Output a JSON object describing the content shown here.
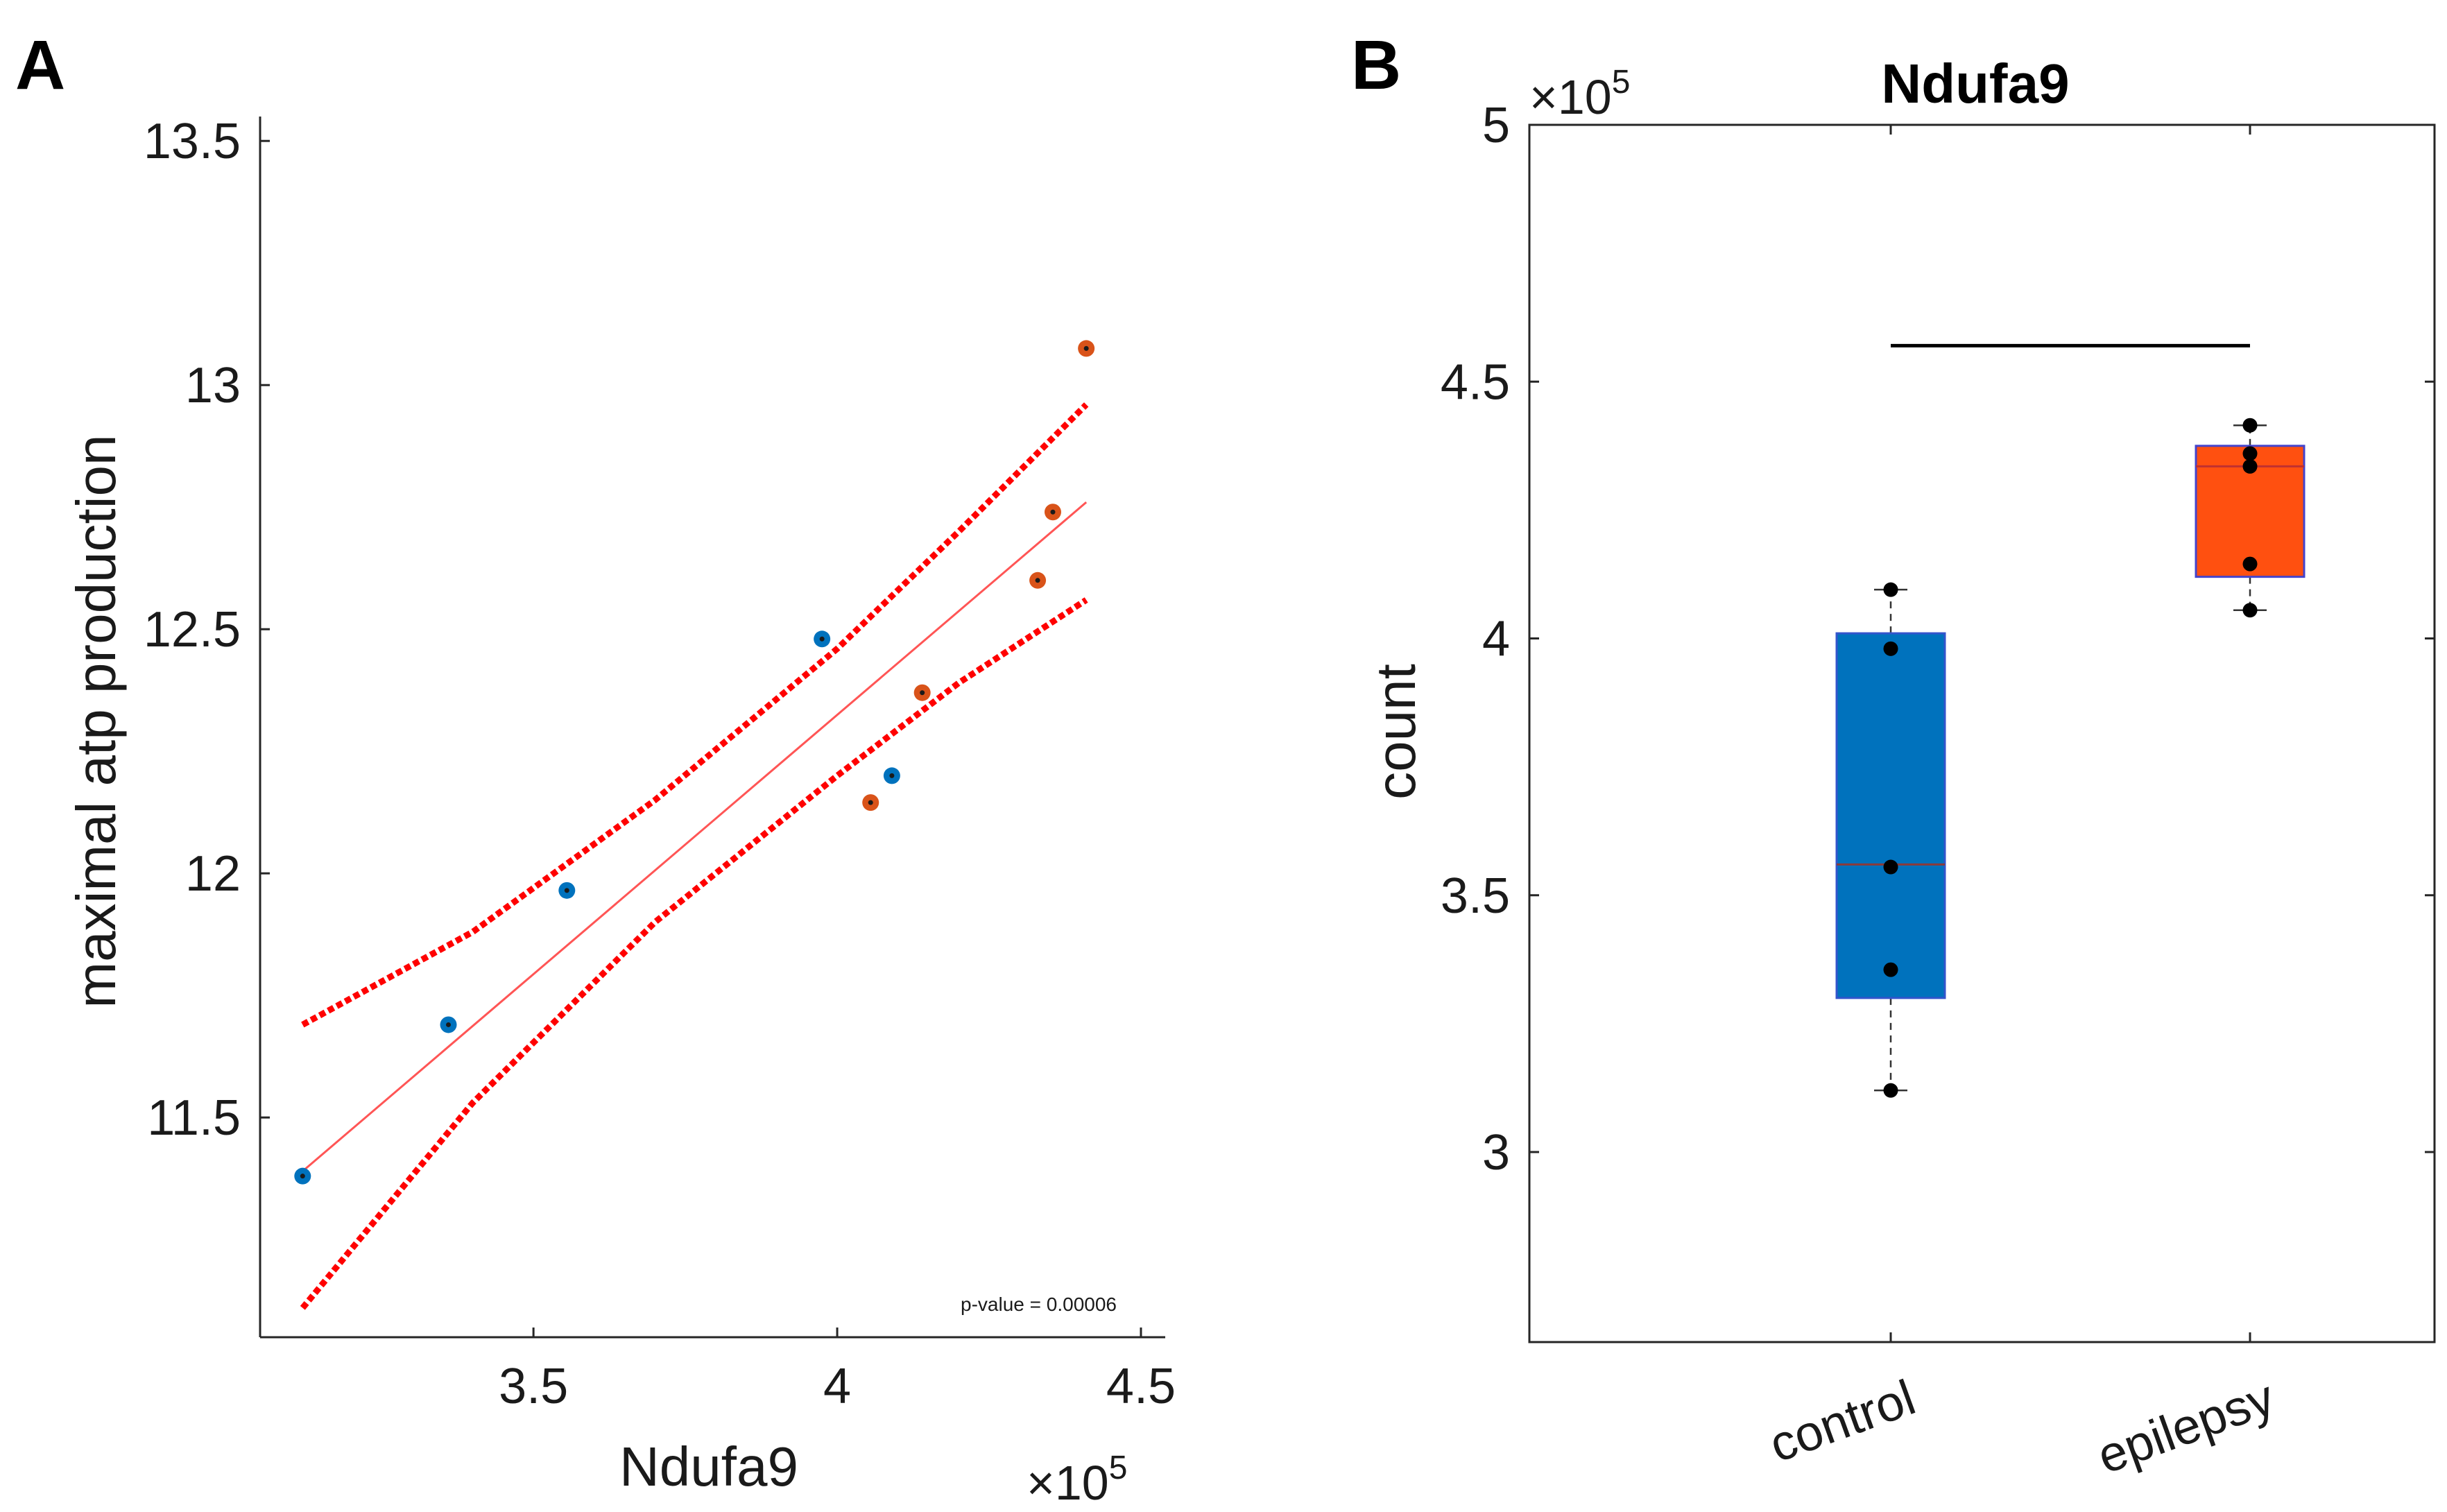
{
  "panels": {
    "a_label": "A",
    "b_label": "B"
  },
  "chart_data": [
    {
      "type": "scatter",
      "title": "",
      "xlabel": "Ndufa9",
      "ylabel": "maximal atp production",
      "x_multiplier": "×10",
      "x_multiplier_exp": "5",
      "xlim": [
        3.05,
        4.54
      ],
      "ylim": [
        11.05,
        13.55
      ],
      "xticks": [
        3.5,
        4,
        4.5
      ],
      "xtick_labels": [
        "3.5",
        "4",
        "4.5"
      ],
      "yticks": [
        11.5,
        12,
        12.5,
        13,
        13.5
      ],
      "ytick_labels": [
        "11.5",
        "12",
        "12.5",
        "13",
        "13.5"
      ],
      "grid": false,
      "annotation": "p-value = 0.00006",
      "series": [
        {
          "color": "#0072BD",
          "points": [
            [
              3.12,
              11.38
            ],
            [
              3.36,
              11.69
            ],
            [
              3.555,
              11.965
            ],
            [
              3.975,
              12.48
            ],
            [
              4.09,
              12.2
            ]
          ]
        },
        {
          "color": "#D95319",
          "points": [
            [
              4.055,
              12.145
            ],
            [
              4.14,
              12.37
            ],
            [
              4.33,
              12.6
            ],
            [
              4.355,
              12.74
            ],
            [
              4.41,
              13.075
            ]
          ]
        }
      ],
      "fit_line": {
        "color": "#FF5555",
        "x": [
          3.12,
          4.41
        ],
        "y": [
          11.39,
          12.76
        ]
      },
      "confidence_bounds": {
        "color": "#FF0000",
        "upper": {
          "x": [
            3.12,
            3.4,
            3.7,
            4.0,
            4.2,
            4.41
          ],
          "y": [
            11.69,
            11.88,
            12.15,
            12.46,
            12.7,
            12.96
          ]
        },
        "lower": {
          "x": [
            3.12,
            3.4,
            3.7,
            4.0,
            4.2,
            4.41
          ],
          "y": [
            11.11,
            11.53,
            11.9,
            12.2,
            12.39,
            12.56
          ]
        }
      }
    },
    {
      "type": "box",
      "title": "Ndufa9",
      "xlabel": "",
      "ylabel": "count",
      "y_multiplier": "×10",
      "y_multiplier_exp": "5",
      "categories": [
        "control",
        "epilepsy"
      ],
      "ylim": [
        2.63,
        5.0
      ],
      "yticks": [
        3,
        3.5,
        4,
        4.5,
        5
      ],
      "ytick_labels": [
        "3",
        "3.5",
        "4",
        "4.5",
        "5"
      ],
      "grid": false,
      "boxes": [
        {
          "q1": 3.3,
          "median": 3.56,
          "q3": 4.01,
          "whisker_low": 3.12,
          "whisker_high": 4.095,
          "color": "#0072BD",
          "edge_color": "#3355CC",
          "median_color": "#8B3A3A"
        },
        {
          "q1": 4.12,
          "median": 4.335,
          "q3": 4.375,
          "whisker_low": 4.055,
          "whisker_high": 4.415,
          "color": "#FF5010",
          "edge_color": "#4444CC",
          "median_color": "#C03030"
        }
      ],
      "points": [
        [
          4.095,
          3.98,
          3.555,
          3.355,
          3.12
        ],
        [
          4.415,
          4.36,
          4.335,
          4.145,
          4.055
        ]
      ],
      "significance_bar": {
        "from": 0,
        "to": 1,
        "y": 4.57
      }
    }
  ]
}
